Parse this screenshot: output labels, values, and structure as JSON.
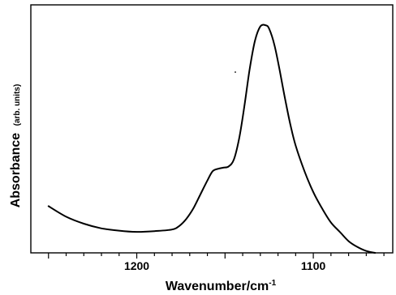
{
  "chart_data": {
    "type": "line",
    "title": "",
    "xlabel": "Wavenumber/cm",
    "xlabel_superscript": "-1",
    "ylabel": "Absorbance",
    "ylabel_units": "(arb. units)",
    "xlim": [
      1260,
      1055
    ],
    "x_reversed": true,
    "ylim": [
      0,
      1.0
    ],
    "y_ticks_shown": false,
    "xticks": [
      1200,
      1100
    ],
    "xtick_labels": [
      "1200",
      "1100"
    ],
    "grid": false,
    "legend": "none",
    "series": [
      {
        "color": "#000000",
        "x": [
          1250,
          1240,
          1230,
          1220,
          1210,
          1200,
          1190,
          1180,
          1176,
          1172,
          1168,
          1164,
          1160,
          1157,
          1154,
          1151,
          1148,
          1145,
          1142,
          1139,
          1136,
          1133,
          1130,
          1127,
          1125,
          1122,
          1119,
          1116,
          1113,
          1110,
          1105,
          1100,
          1095,
          1090,
          1085,
          1080,
          1075,
          1070,
          1065
        ],
        "y": [
          0.2,
          0.155,
          0.125,
          0.105,
          0.095,
          0.09,
          0.093,
          0.1,
          0.115,
          0.145,
          0.19,
          0.25,
          0.31,
          0.35,
          0.36,
          0.365,
          0.37,
          0.4,
          0.49,
          0.63,
          0.79,
          0.91,
          0.97,
          0.975,
          0.96,
          0.89,
          0.78,
          0.66,
          0.55,
          0.46,
          0.35,
          0.26,
          0.19,
          0.13,
          0.09,
          0.05,
          0.025,
          0.008,
          0.0
        ]
      }
    ]
  }
}
